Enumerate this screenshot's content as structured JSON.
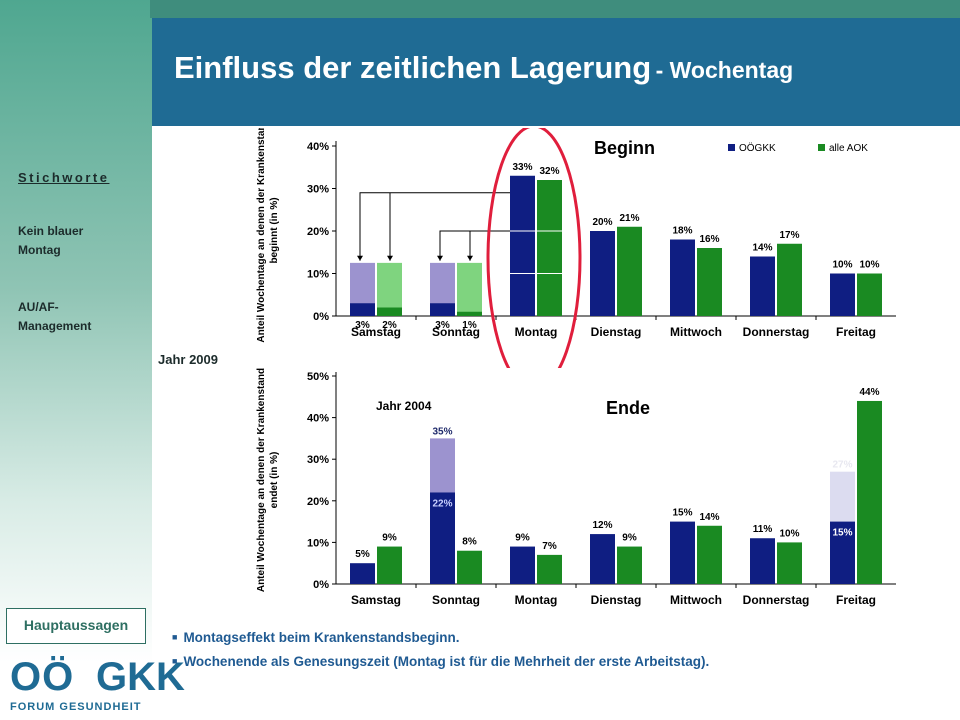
{
  "title": {
    "main": "Einfluss der zeitlichen Lagerung",
    "sub": "- Wochentag"
  },
  "sidebar": {
    "heading": "Stichworte",
    "items": [
      {
        "label": "Kein blauer Montag"
      },
      {
        "label": "AU/AF-Management"
      }
    ]
  },
  "hauptaussagen_label": "Hauptaussagen",
  "logo": {
    "oo": "OÖ",
    "gkk": "GKK",
    "forum": "FORUM GESUNDHEIT"
  },
  "year_2009_label": "Jahr 2009",
  "bullets": [
    "Montagseffekt beim Krankenstandsbeginn.",
    "Wochenende als Genesungszeit (Montag ist für die Mehrheit der erste Arbeitstag)."
  ],
  "colors": {
    "ooegkk": "#0f1e82",
    "aok": "#1a8a22",
    "ooegkk_2004": "#9c93cf",
    "aok_2004": "#7fd47f",
    "highlight": "#e01e3c"
  },
  "chart_data": [
    {
      "type": "bar",
      "title": "Beginn",
      "ylabel": "Anteil Wochentage an denen der Krankenstand beginnt (in %)",
      "ylim": [
        0,
        40
      ],
      "yticks": [
        "0%",
        "10%",
        "20%",
        "30%",
        "40%"
      ],
      "categories": [
        "Samstag",
        "Sonntag",
        "Montag",
        "Dienstag",
        "Mittwoch",
        "Donnerstag",
        "Freitag"
      ],
      "series": [
        {
          "name": "OÖGKK",
          "values": [
            3,
            3,
            33,
            20,
            18,
            14,
            10
          ],
          "labels": [
            "3%",
            "3%",
            "33%",
            "20%",
            "18%",
            "14%",
            "10%"
          ]
        },
        {
          "name": "alle AOK",
          "values": [
            2,
            1,
            32,
            21,
            16,
            17,
            10
          ],
          "labels": [
            "2%",
            "1%",
            "32%",
            "21%",
            "16%",
            "17%",
            "10%"
          ]
        }
      ],
      "overlay_2004": {
        "OÖGKK": {
          "Samstag": 12.5,
          "Sonntag": 12.5
        },
        "alle AOK": {
          "Samstag": 12.5,
          "Sonntag": 12.5
        }
      },
      "legend_position": "top-right"
    },
    {
      "type": "bar",
      "title": "Ende",
      "subtitle": "Jahr 2004",
      "ylabel": "Anteil Wochentage an denen der Krankenstand endet (in %)",
      "ylim": [
        0,
        50
      ],
      "yticks": [
        "0%",
        "10%",
        "20%",
        "30%",
        "40%",
        "50%"
      ],
      "categories": [
        "Samstag",
        "Sonntag",
        "Montag",
        "Dienstag",
        "Mittwoch",
        "Donnerstag",
        "Freitag"
      ],
      "series": [
        {
          "name": "OÖGKK",
          "values": [
            5,
            22,
            9,
            12,
            15,
            11,
            15
          ],
          "labels": [
            "5%",
            "22%",
            "9%",
            "12%",
            "15%",
            "11%",
            "15%"
          ]
        },
        {
          "name": "alle AOK",
          "values": [
            9,
            8,
            7,
            9,
            14,
            10,
            44
          ],
          "labels": [
            "9%",
            "8%",
            "7%",
            "9%",
            "14%",
            "10%",
            "44%"
          ]
        }
      ],
      "overlay_2004": {
        "Sonntag": {
          "value": 35,
          "label": "35%"
        },
        "Freitag": {
          "value": 27,
          "label": "27%"
        }
      }
    }
  ]
}
